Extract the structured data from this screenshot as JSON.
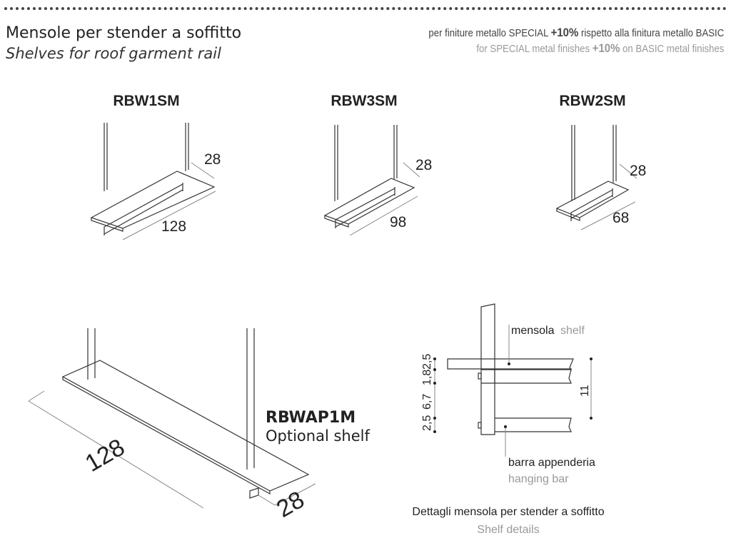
{
  "header": {
    "title_it": "Mensole per stender a soffitto",
    "title_en": "Shelves for roof garment rail",
    "note_it": {
      "pre": "per finiture metallo SPECIAL ",
      "bold": "+10%",
      "post": " rispetto alla finitura metallo BASIC"
    },
    "note_en": {
      "pre": "for SPECIAL metal finishes ",
      "bold": "+10%",
      "post": " on BASIC metal finishes"
    }
  },
  "products": [
    {
      "code": "RBW1SM",
      "depth": "28",
      "length": "128"
    },
    {
      "code": "RBW3SM",
      "depth": "28",
      "length": "98"
    },
    {
      "code": "RBW2SM",
      "depth": "28",
      "length": "68"
    }
  ],
  "optional": {
    "code": "RBWAP1M",
    "label": "Optional shelf",
    "length": "128",
    "depth": "28"
  },
  "detail": {
    "shelf_it": "mensola",
    "shelf_en": "shelf",
    "bar_it": "barra appenderia",
    "bar_en": "hanging bar",
    "dims": [
      "2,5",
      "1,8",
      "6,7",
      "2,5"
    ],
    "height": "11",
    "caption_it": "Dettagli mensola per stender a soffitto",
    "caption_en": "Shelf details"
  },
  "colors": {
    "text": "#222222",
    "secondary": "#999999"
  }
}
